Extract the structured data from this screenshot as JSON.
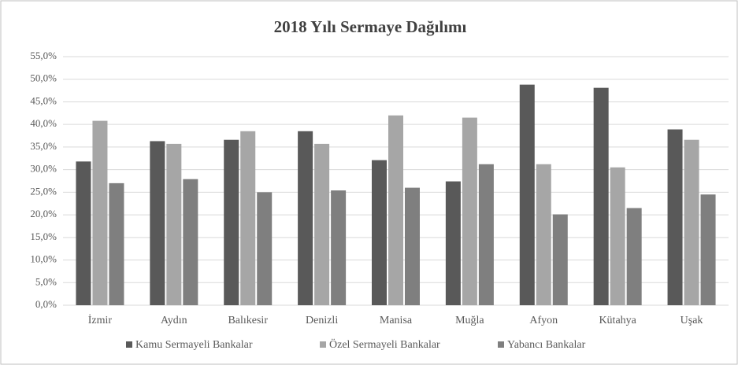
{
  "chart_data": {
    "type": "bar",
    "title": "2018 Yılı Sermaye Dağılımı",
    "categories": [
      "İzmir",
      "Aydın",
      "Balıkesir",
      "Denizli",
      "Manisa",
      "Muğla",
      "Afyon",
      "Kütahya",
      "Uşak"
    ],
    "series": [
      {
        "name": "Kamu Sermayeli Bankalar",
        "color": "#595959",
        "values": [
          31.8,
          36.3,
          36.6,
          38.5,
          32.1,
          27.4,
          48.8,
          48.1,
          38.9
        ]
      },
      {
        "name": "Özel Sermayeli Bankalar",
        "color": "#a6a6a6",
        "values": [
          40.8,
          35.7,
          38.5,
          35.7,
          42.0,
          41.5,
          31.2,
          30.5,
          36.6
        ]
      },
      {
        "name": "Yabancı Bankalar",
        "color": "#7f7f7f",
        "values": [
          27.0,
          27.9,
          25.0,
          25.4,
          26.0,
          31.2,
          20.1,
          21.5,
          24.5
        ]
      }
    ],
    "ylim": [
      0,
      55
    ],
    "yticks": [
      {
        "value": 0,
        "label": "0,0%"
      },
      {
        "value": 5,
        "label": "5,0%"
      },
      {
        "value": 10,
        "label": "10,0%"
      },
      {
        "value": 15,
        "label": "15,0%"
      },
      {
        "value": 20,
        "label": "20,0%"
      },
      {
        "value": 25,
        "label": "25,0%"
      },
      {
        "value": 30,
        "label": "30,0%"
      },
      {
        "value": 35,
        "label": "35,0%"
      },
      {
        "value": 40,
        "label": "40,0%"
      },
      {
        "value": 45,
        "label": "45,0%"
      },
      {
        "value": 50,
        "label": "50,0%"
      },
      {
        "value": 55,
        "label": "55,0%"
      }
    ],
    "grid": true,
    "legend": "bottom"
  }
}
